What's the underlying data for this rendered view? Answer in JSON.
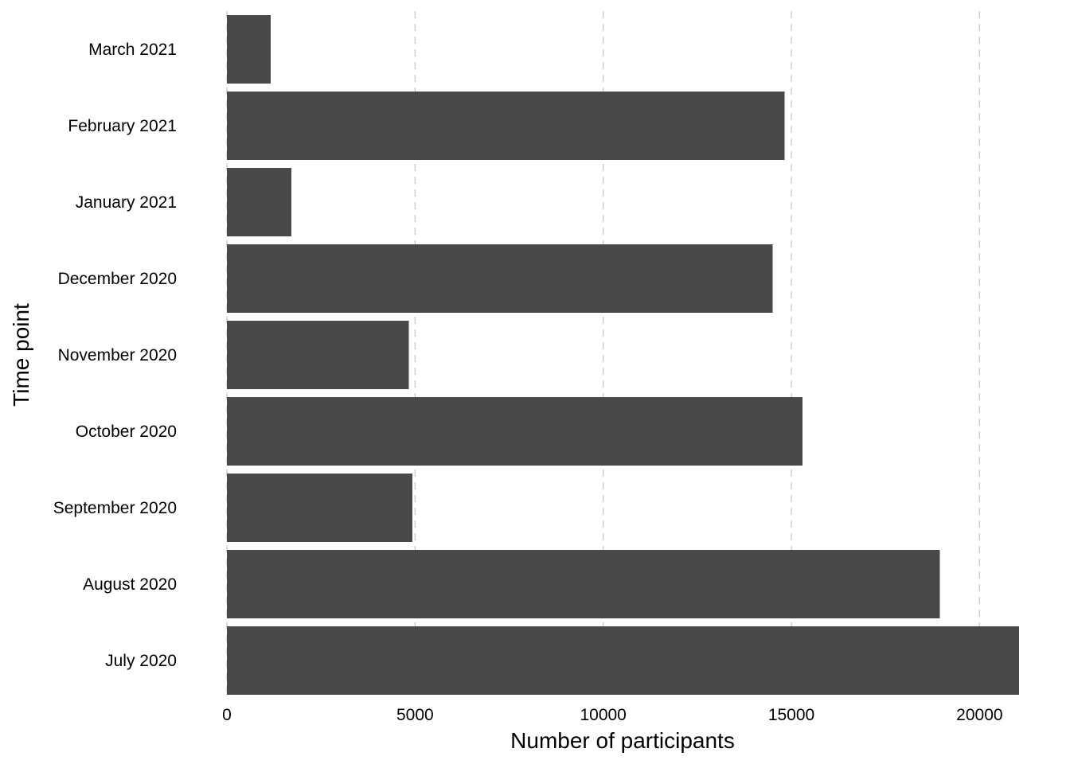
{
  "chart_data": {
    "type": "bar",
    "orientation": "horizontal",
    "categories": [
      "July 2020",
      "August 2020",
      "September 2020",
      "October 2020",
      "November 2020",
      "December 2020",
      "January 2021",
      "February 2021",
      "March 2021"
    ],
    "values": [
      21050,
      18950,
      4930,
      15300,
      4830,
      14500,
      1710,
      14820,
      1160
    ],
    "xlabel": "Number of participants",
    "ylabel": "Time point",
    "xlim": [
      0,
      21050
    ],
    "xticks": [
      0,
      5000,
      10000,
      15000,
      20000
    ],
    "xtick_labels": [
      "0",
      "5000",
      "10000",
      "15000",
      "20000"
    ],
    "grid": "vertical dashed",
    "colors": {
      "bar": "#484848",
      "grid": "#c8c8c8",
      "background": "#ffffff"
    }
  }
}
